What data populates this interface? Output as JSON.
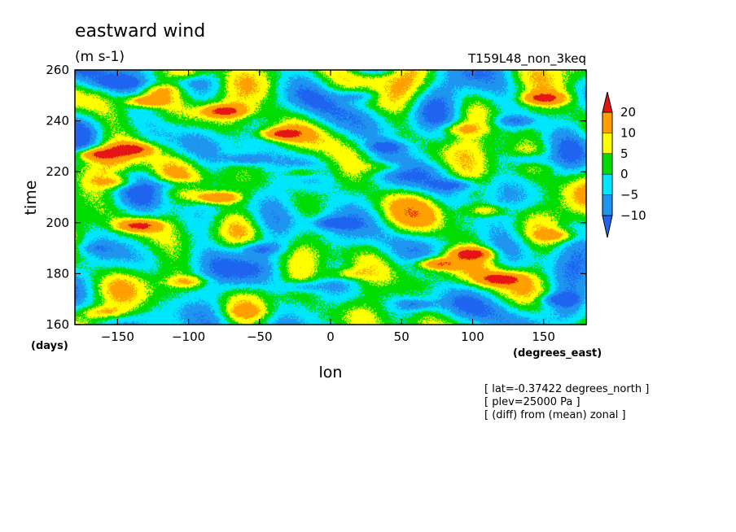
{
  "chart_data": {
    "type": "heatmap",
    "title": "eastward wind",
    "units": "(m s-1)",
    "experiment": "T159L48_non_3keq",
    "xlabel": "lon",
    "ylabel": "time",
    "x_unit": "(degrees_east)",
    "y_unit": "(days)",
    "xlim": [
      -180,
      180
    ],
    "ylim": [
      160,
      260
    ],
    "x_ticks": [
      -150,
      -100,
      -50,
      0,
      50,
      100,
      150
    ],
    "y_ticks": [
      160,
      180,
      200,
      220,
      240,
      260
    ],
    "colorbar": {
      "levels": [
        -10,
        -5,
        0,
        5,
        10,
        20
      ],
      "labels": [
        "20",
        "10",
        "5",
        "0",
        "−5",
        "−10"
      ],
      "colors": [
        "#1e64f0",
        "#1e96f0",
        "#00e6ff",
        "#00dc00",
        "#ffff00",
        "#ffa000",
        "#e61414"
      ],
      "extend": "both"
    },
    "notes": [
      "[ lat=-0.37422 degrees_north ]",
      "[ plev=25000 Pa ]",
      "[ (diff) from (mean) zonal ]"
    ],
    "features": [
      {
        "lon": -130,
        "time": 248,
        "value": 20
      },
      {
        "lon": -100,
        "time": 259,
        "value": 10
      },
      {
        "lon": -75,
        "time": 244,
        "value": 20
      },
      {
        "lon": -165,
        "time": 227,
        "value": 20
      },
      {
        "lon": -140,
        "time": 229,
        "value": 20
      },
      {
        "lon": -35,
        "time": 235,
        "value": 20
      },
      {
        "lon": -80,
        "time": 210,
        "value": 20
      },
      {
        "lon": -135,
        "time": 199,
        "value": 20
      },
      {
        "lon": -150,
        "time": 216,
        "value": 10
      },
      {
        "lon": -100,
        "time": 177,
        "value": 10
      },
      {
        "lon": 75,
        "time": 184,
        "value": 20
      },
      {
        "lon": 100,
        "time": 188,
        "value": 20
      },
      {
        "lon": 120,
        "time": 178,
        "value": 20
      },
      {
        "lon": 150,
        "time": 249,
        "value": 20
      },
      {
        "lon": 110,
        "time": 205,
        "value": 10
      },
      {
        "lon": 90,
        "time": 237,
        "value": 10
      },
      {
        "lon": -20,
        "time": 220,
        "value": 10
      },
      {
        "lon": 40,
        "time": 222,
        "value": 10
      },
      {
        "lon": -120,
        "time": 252,
        "value": 10
      },
      {
        "lon": 160,
        "time": 195,
        "value": 10
      },
      {
        "lon": 10,
        "time": 180,
        "value": 10
      },
      {
        "lon": -60,
        "time": 165,
        "value": 5
      },
      {
        "lon": -160,
        "time": 165,
        "value": 10
      },
      {
        "lon": 30,
        "time": 257,
        "value": 5
      },
      {
        "lon": -50,
        "time": 190,
        "value": -10
      },
      {
        "lon": 0,
        "time": 200,
        "value": -10
      },
      {
        "lon": 40,
        "time": 230,
        "value": -10
      },
      {
        "lon": 20,
        "time": 250,
        "value": -10
      },
      {
        "lon": -20,
        "time": 175,
        "value": -10
      },
      {
        "lon": 140,
        "time": 225,
        "value": -10
      },
      {
        "lon": 160,
        "time": 170,
        "value": -10
      },
      {
        "lon": -150,
        "time": 255,
        "value": -10
      },
      {
        "lon": -110,
        "time": 215,
        "value": -10
      },
      {
        "lon": 60,
        "time": 168,
        "value": -10
      },
      {
        "lon": -60,
        "time": 225,
        "value": -10
      },
      {
        "lon": 90,
        "time": 215,
        "value": -10
      },
      {
        "lon": -170,
        "time": 190,
        "value": -5
      },
      {
        "lon": 130,
        "time": 240,
        "value": -10
      }
    ]
  }
}
